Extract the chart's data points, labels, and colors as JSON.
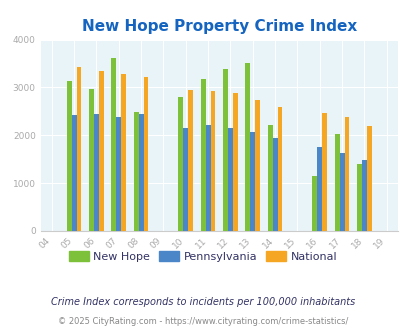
{
  "title": "New Hope Property Crime Index",
  "years": [
    2004,
    2005,
    2006,
    2007,
    2008,
    2009,
    2010,
    2011,
    2012,
    2013,
    2014,
    2015,
    2016,
    2017,
    2018,
    2019
  ],
  "new_hope": [
    0,
    3130,
    2960,
    3620,
    2490,
    0,
    2790,
    3180,
    3390,
    3520,
    2210,
    0,
    1155,
    2020,
    1410,
    0
  ],
  "pennsylvania": [
    0,
    2430,
    2450,
    2375,
    2440,
    0,
    2160,
    2210,
    2155,
    2070,
    1940,
    0,
    1760,
    1640,
    1490,
    0
  ],
  "national": [
    0,
    3430,
    3350,
    3280,
    3220,
    0,
    2950,
    2920,
    2880,
    2730,
    2600,
    0,
    2460,
    2390,
    2190,
    0
  ],
  "color_new_hope": "#7dc13a",
  "color_pennsylvania": "#4a86c8",
  "color_national": "#f5a623",
  "bg_color": "#e8f4f8",
  "title_color": "#1565c0",
  "tick_color": "#aaaaaa",
  "legend_label_color": "#333366",
  "note_text": "Crime Index corresponds to incidents per 100,000 inhabitants",
  "footer_text": "© 2025 CityRating.com - https://www.cityrating.com/crime-statistics/",
  "ylim": [
    0,
    4000
  ],
  "yticks": [
    0,
    1000,
    2000,
    3000,
    4000
  ],
  "bar_width": 0.22
}
